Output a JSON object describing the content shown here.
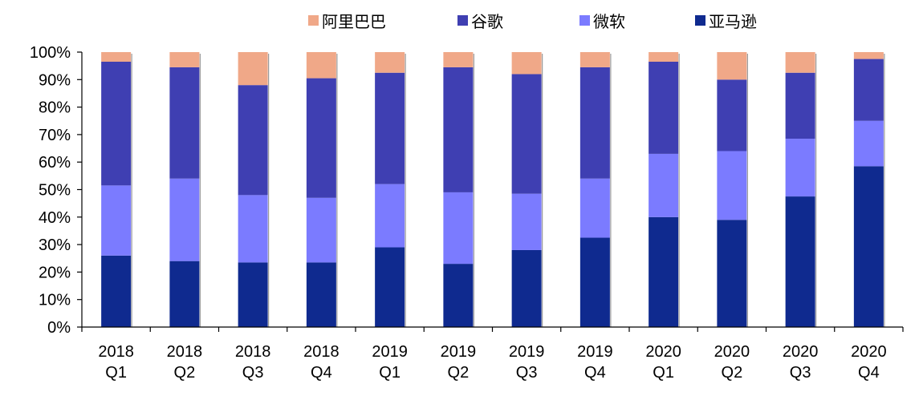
{
  "chart_data": {
    "type": "bar",
    "stacked": true,
    "title": "",
    "xlabel": "",
    "ylabel": "",
    "ylim": [
      0,
      100
    ],
    "yticks": [
      "0%",
      "10%",
      "20%",
      "30%",
      "40%",
      "50%",
      "60%",
      "70%",
      "80%",
      "90%",
      "100%"
    ],
    "y_tick_values": [
      0,
      10,
      20,
      30,
      40,
      50,
      60,
      70,
      80,
      90,
      100
    ],
    "legend_position": "top",
    "grid": false,
    "categories": [
      [
        "2018",
        "Q1"
      ],
      [
        "2018",
        "Q2"
      ],
      [
        "2018",
        "Q3"
      ],
      [
        "2018",
        "Q4"
      ],
      [
        "2019",
        "Q1"
      ],
      [
        "2019",
        "Q2"
      ],
      [
        "2019",
        "Q3"
      ],
      [
        "2019",
        "Q4"
      ],
      [
        "2020",
        "Q1"
      ],
      [
        "2020",
        "Q2"
      ],
      [
        "2020",
        "Q3"
      ],
      [
        "2020",
        "Q4"
      ]
    ],
    "series": [
      {
        "name": "亚马逊",
        "color": "#0f2a8f",
        "values": [
          26,
          24,
          23.5,
          23.5,
          29,
          23,
          28,
          32.5,
          40,
          39,
          47.5,
          58.5
        ]
      },
      {
        "name": "微软",
        "color": "#7b7bff",
        "values": [
          25.5,
          30,
          24.5,
          23.5,
          23,
          26,
          20.5,
          21.5,
          23,
          25,
          21,
          16.5
        ]
      },
      {
        "name": "谷歌",
        "color": "#3f3fb2",
        "values": [
          45,
          40.5,
          40,
          43.5,
          40.5,
          45.5,
          43.5,
          40.5,
          33.5,
          26,
          24,
          22.5
        ]
      },
      {
        "name": "阿里巴巴",
        "color": "#f0a888",
        "values": [
          3.5,
          5.5,
          12,
          9.5,
          7.5,
          5.5,
          8,
          5.5,
          3.5,
          10,
          7.5,
          2.5
        ]
      }
    ],
    "legend_order": [
      "阿里巴巴",
      "谷歌",
      "微软",
      "亚马逊"
    ]
  }
}
